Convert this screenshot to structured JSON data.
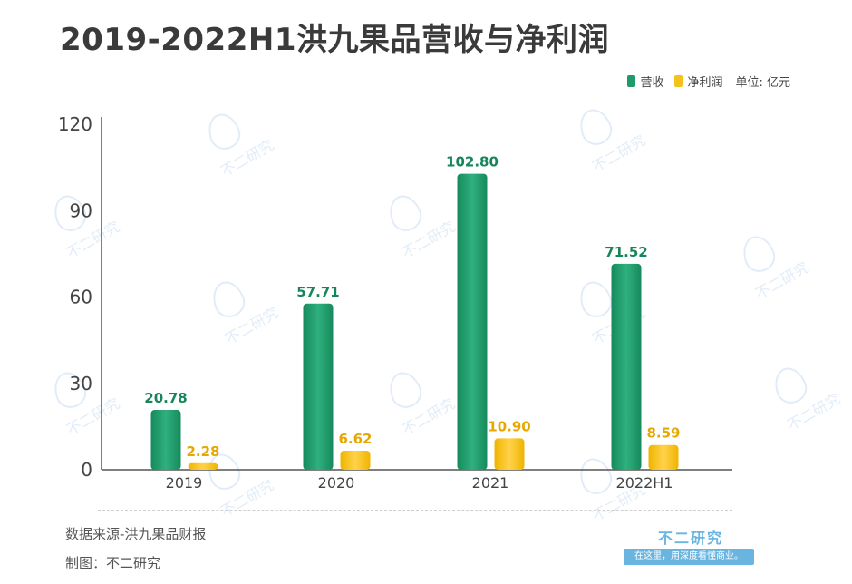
{
  "title": "2019-2022H1洪九果品营收与净利润",
  "legend": {
    "revenue_label": "营收",
    "profit_label": "净利润",
    "unit": "单位: 亿元"
  },
  "colors": {
    "revenue": "#1e9a6b",
    "revenue_label": "#17855a",
    "profit": "#f5c21c",
    "profit_label": "#e6a800",
    "axis": "#555555"
  },
  "chart_data": {
    "type": "bar",
    "categories": [
      "2019",
      "2020",
      "2021",
      "2022H1"
    ],
    "series": [
      {
        "name": "营收",
        "values": [
          20.78,
          57.71,
          102.8,
          71.52
        ],
        "labels": [
          "20.78",
          "57.71",
          "102.80",
          "71.52"
        ]
      },
      {
        "name": "净利润",
        "values": [
          2.28,
          6.62,
          10.9,
          8.59
        ],
        "labels": [
          "2.28",
          "6.62",
          "10.90",
          "8.59"
        ]
      }
    ],
    "ylim": [
      0,
      120
    ],
    "yticks": [
      "0",
      "30",
      "60",
      "90",
      "120"
    ],
    "grid": false,
    "legend_position": "top-right"
  },
  "footer": {
    "source": "数据来源-洪九果品财报",
    "maker": "制图：不二研究",
    "brand": "不二研究",
    "slogan": "在这里，用深度看懂商业。"
  },
  "watermark_text": "不二研究"
}
